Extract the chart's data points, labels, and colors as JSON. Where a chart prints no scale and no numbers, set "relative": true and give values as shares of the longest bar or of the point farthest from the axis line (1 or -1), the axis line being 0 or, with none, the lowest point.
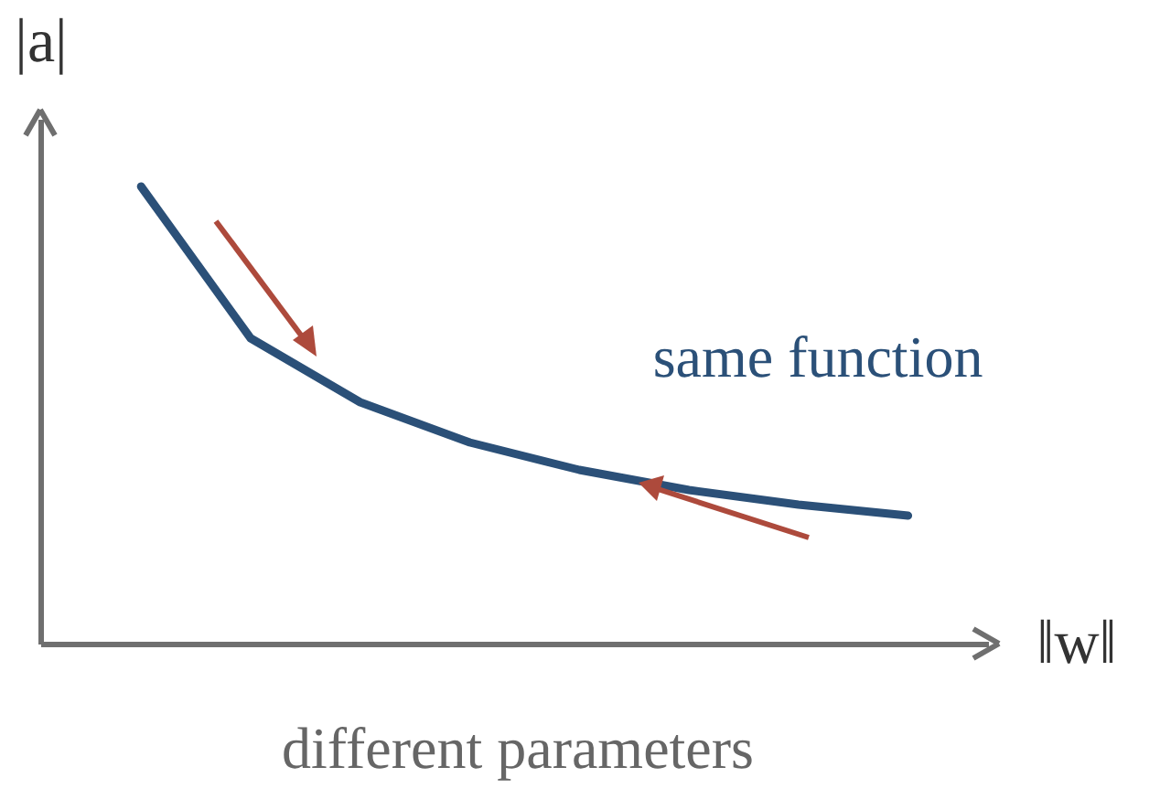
{
  "chart_data": {
    "type": "line",
    "relative": true,
    "tick_labels": false,
    "xlabel": "‖w‖",
    "ylabel": "|a|",
    "categories": [
      null,
      null,
      null,
      null,
      null,
      null,
      null,
      null
    ],
    "series": [
      {
        "color": "#2b5078",
        "values": [
          1.0,
          0.668,
          0.528,
          0.44,
          0.38,
          0.336,
          0.304,
          0.28
        ]
      }
    ],
    "annotations": [
      "same function",
      "different parameters"
    ]
  }
}
